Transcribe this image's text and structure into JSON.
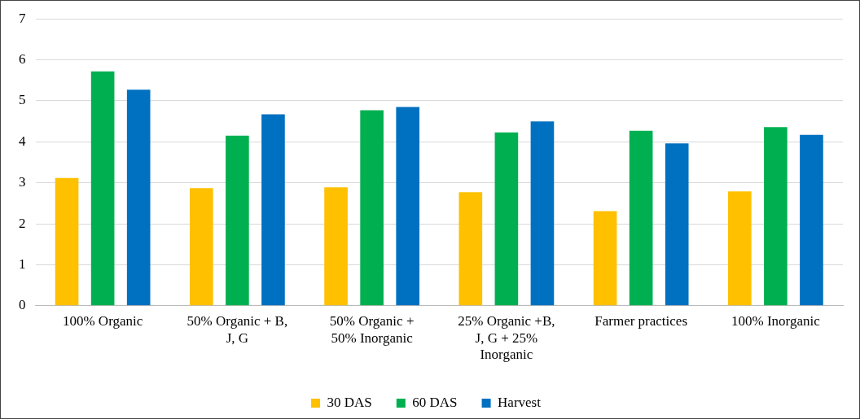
{
  "chart_data": {
    "type": "bar",
    "categories": [
      "100% Organic",
      "50% Organic + B, J, G",
      "50% Organic + 50% Inorganic",
      "25% Organic +B, J, G + 25% Inorganic",
      "Farmer practices",
      "100% Inorganic"
    ],
    "series": [
      {
        "name": "30 DAS",
        "color": "#ffc000",
        "values": [
          3.12,
          2.87,
          2.89,
          2.77,
          2.31,
          2.79
        ]
      },
      {
        "name": "60 DAS",
        "color": "#00b050",
        "values": [
          5.72,
          4.15,
          4.77,
          4.23,
          4.27,
          4.36
        ]
      },
      {
        "name": "Harvest",
        "color": "#0070c0",
        "values": [
          5.27,
          4.67,
          4.85,
          4.5,
          3.96,
          4.17
        ]
      }
    ],
    "ylim": [
      0,
      7
    ],
    "yticks": [
      0,
      1,
      2,
      3,
      4,
      5,
      6,
      7
    ],
    "grid": "y",
    "legend": "bottom"
  }
}
